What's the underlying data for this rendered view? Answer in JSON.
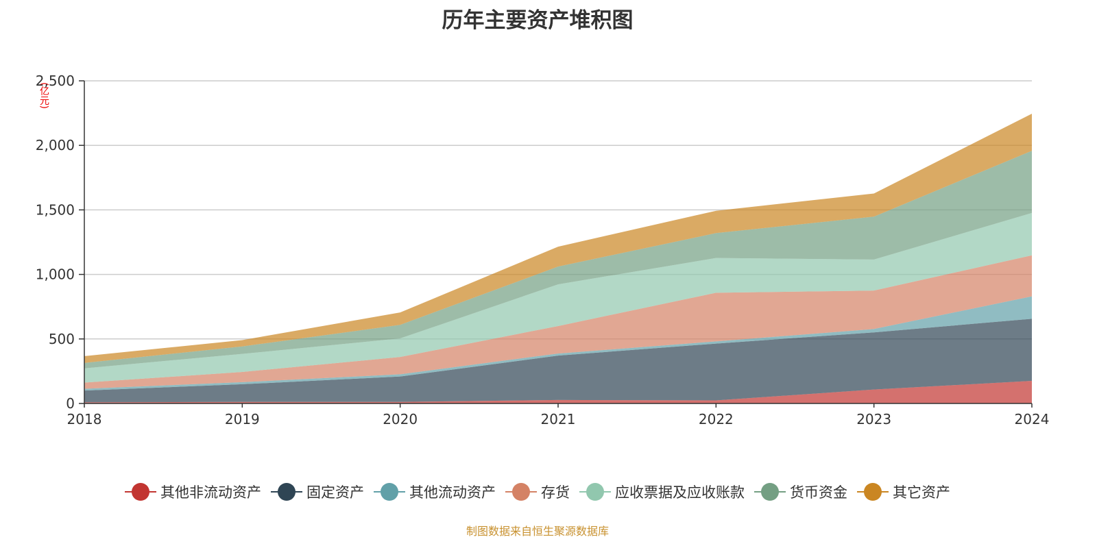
{
  "chart_data": {
    "type": "area",
    "stacked": true,
    "title": "历年主要资产堆积图",
    "ylabel": "(亿元)",
    "xlabel": "",
    "categories": [
      "2018",
      "2019",
      "2020",
      "2021",
      "2022",
      "2023",
      "2024"
    ],
    "ylim": [
      0,
      2500
    ],
    "yticks": [
      0,
      500,
      1000,
      1500,
      2000,
      2500
    ],
    "ytick_labels": [
      "0",
      "500",
      "1,000",
      "1,500",
      "2,000",
      "2,500"
    ],
    "grid": true,
    "legend_position": "bottom",
    "series": [
      {
        "name": "其他非流动资产",
        "color": "#c23531",
        "values": [
          9,
          12,
          12,
          27,
          24,
          108,
          175
        ]
      },
      {
        "name": "固定资产",
        "color": "#2f4554",
        "values": [
          91,
          137,
          197,
          344,
          440,
          443,
          481
        ]
      },
      {
        "name": "其他流动资产",
        "color": "#61a0a8",
        "values": [
          14,
          16,
          17,
          16,
          17,
          26,
          174
        ]
      },
      {
        "name": "存货",
        "color": "#d48265",
        "values": [
          48,
          79,
          134,
          213,
          377,
          298,
          318
        ]
      },
      {
        "name": "应收票据及应收账款",
        "color": "#91c7ae",
        "values": [
          110,
          140,
          144,
          323,
          269,
          240,
          328
        ]
      },
      {
        "name": "货币资金",
        "color": "#749f83",
        "values": [
          42,
          58,
          105,
          138,
          193,
          333,
          482
        ]
      },
      {
        "name": "其它资产",
        "color": "#ca8622",
        "values": [
          53,
          49,
          96,
          154,
          173,
          179,
          287
        ]
      }
    ]
  },
  "footer": "制图数据来自恒生聚源数据库"
}
